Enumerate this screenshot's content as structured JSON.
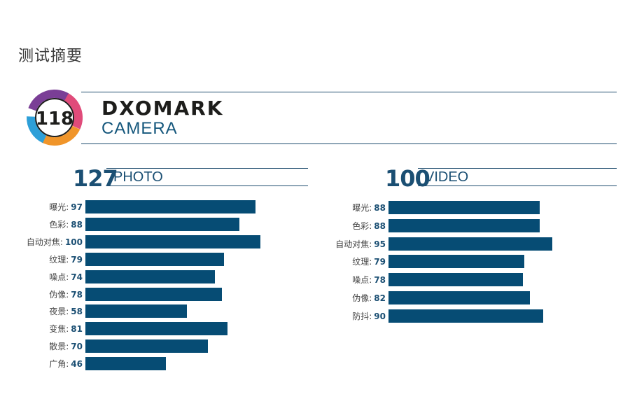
{
  "page": {
    "title": "测试摘要"
  },
  "header": {
    "overall_score": "118",
    "brand": "DXOMARK",
    "category": "CAMERA",
    "colors": {
      "accent": "#15577c",
      "badge_purple": "#7a3e96",
      "badge_pink": "#e04b7a",
      "badge_orange": "#f0952a",
      "badge_blue": "#2d9fd8"
    }
  },
  "chart_data": [
    {
      "type": "bar",
      "orientation": "horizontal",
      "score": "127",
      "title": "PHOTO",
      "categories": [
        "曝光",
        "色彩",
        "自动对焦",
        "纹理",
        "噪点",
        "伪像",
        "夜景",
        "变焦",
        "散景",
        "广角"
      ],
      "values": [
        97,
        88,
        100,
        79,
        74,
        78,
        58,
        81,
        70,
        46
      ],
      "xlim": [
        0,
        100
      ],
      "bar_color": "#064c74"
    },
    {
      "type": "bar",
      "orientation": "horizontal",
      "score": "100",
      "title": "VIDEO",
      "categories": [
        "曝光",
        "色彩",
        "自动对焦",
        "纹理",
        "噪点",
        "伪像",
        "防抖"
      ],
      "values": [
        88,
        88,
        95,
        79,
        78,
        82,
        90
      ],
      "xlim": [
        0,
        100
      ],
      "bar_color": "#064c74"
    }
  ]
}
